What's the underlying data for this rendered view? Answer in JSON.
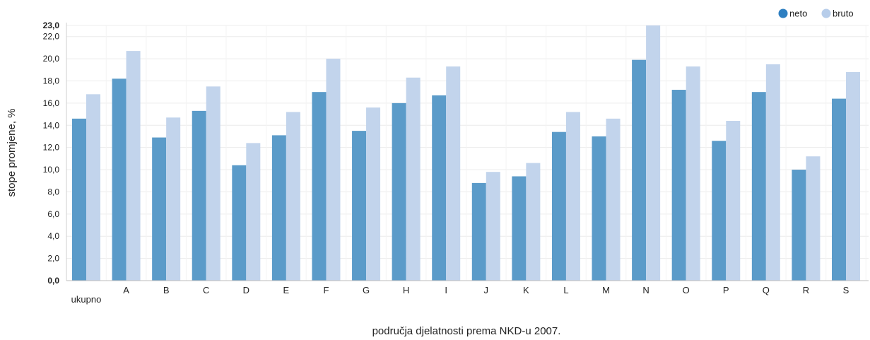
{
  "chart_data": {
    "type": "bar",
    "xlabel": "područja djelatnosti prema NKD-u 2007.",
    "ylabel": "stope promjene, %",
    "ylim": [
      0,
      23
    ],
    "yticks": [
      "0,0",
      "2,0",
      "4,0",
      "6,0",
      "8,0",
      "10,0",
      "12,0",
      "14,0",
      "16,0",
      "18,0",
      "20,0",
      "22,0",
      "23,0"
    ],
    "grid": true,
    "legend_position": "top-right",
    "categories": [
      "ukupno",
      "A",
      "B",
      "C",
      "D",
      "E",
      "F",
      "G",
      "H",
      "I",
      "J",
      "K",
      "L",
      "M",
      "N",
      "O",
      "P",
      "Q",
      "R",
      "S"
    ],
    "series": [
      {
        "name": "neto",
        "color": "#5b9bc9",
        "legend_color": "#2e7fc1",
        "values": [
          14.6,
          18.2,
          12.9,
          15.3,
          10.4,
          13.1,
          17.0,
          13.5,
          16.0,
          16.7,
          8.8,
          9.4,
          13.4,
          13.0,
          19.9,
          17.2,
          12.6,
          17.0,
          10.0,
          16.4
        ]
      },
      {
        "name": "bruto",
        "color": "#c2d4ec",
        "legend_color": "#b7cdea",
        "values": [
          16.8,
          20.7,
          14.7,
          17.5,
          12.4,
          15.2,
          20.0,
          15.6,
          18.3,
          19.3,
          9.8,
          10.6,
          15.2,
          14.6,
          23.0,
          19.3,
          14.4,
          19.5,
          11.2,
          18.8
        ]
      }
    ]
  }
}
